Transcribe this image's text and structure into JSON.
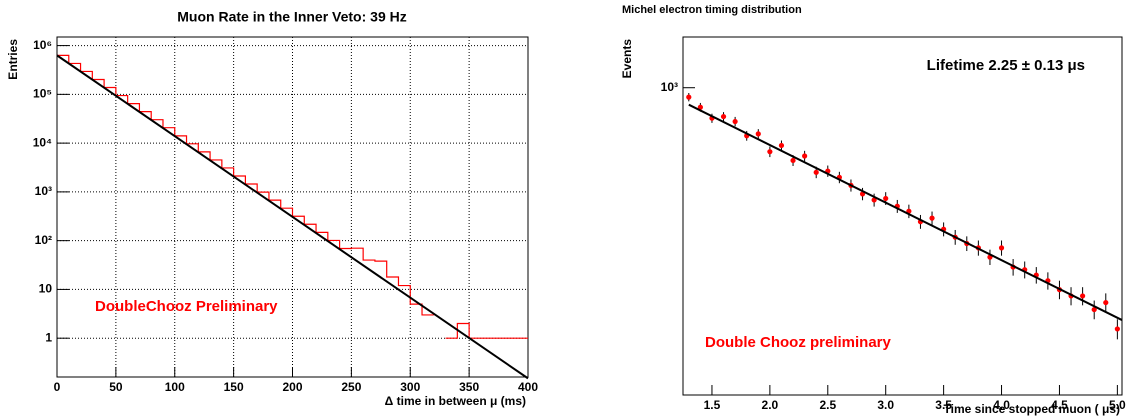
{
  "chart_data": [
    {
      "type": "line",
      "title": "Muon Rate in the Inner Veto: 39 Hz",
      "x_label": "Δ time in between μ (ms)",
      "y_label": "Entries",
      "annotation": "DoubleChooz Preliminary",
      "log_y": true,
      "grid": true,
      "xlim": [
        0,
        400
      ],
      "ylim": [
        0.16,
        1500000
      ],
      "xticks": [
        0,
        50,
        100,
        150,
        200,
        250,
        300,
        350,
        400
      ],
      "yticks": [
        1,
        10,
        {
          "value": 100,
          "label": "10²"
        },
        {
          "value": 1000,
          "label": "10³"
        },
        {
          "value": 10000,
          "label": "10⁴"
        },
        {
          "value": 100000,
          "label": "10⁵"
        },
        {
          "value": 1000000,
          "label": "10⁶"
        }
      ],
      "x": [
        0,
        10,
        20,
        30,
        40,
        50,
        60,
        70,
        80,
        90,
        100,
        110,
        120,
        130,
        140,
        150,
        160,
        170,
        180,
        190,
        200,
        210,
        220,
        230,
        240,
        250,
        260,
        270,
        280,
        290,
        300,
        310,
        320,
        330,
        340,
        350,
        360,
        370,
        380,
        390,
        400
      ],
      "series": [
        {
          "color": "#ff0000",
          "values": [
            630000,
            431000,
            295000,
            202000,
            138000,
            94400,
            64600,
            44200,
            30200,
            20700,
            14100,
            9670,
            6610,
            4520,
            3100,
            2120,
            1450,
            990,
            677,
            463,
            317,
            217,
            148,
            101,
            69,
            70,
            40,
            38,
            18,
            12,
            5,
            3,
            null,
            1,
            2,
            1,
            1,
            1,
            1,
            1,
            1
          ]
        }
      ],
      "fit": {
        "x": [
          0,
          400
        ],
        "values": [
          630000,
          0.15
        ],
        "color": "#000000"
      }
    },
    {
      "type": "scatter",
      "title": "Michel electron timing distribution",
      "x_label": "Time since stopped muon ( μs)",
      "y_label": "Events",
      "annotation": "Double Chooz preliminary",
      "note": "Lifetime 2.25 ± 0.13 μs",
      "log_y": true,
      "grid": false,
      "xlim": [
        1.25,
        5.04
      ],
      "ylim": [
        93,
        1480
      ],
      "xticks": [
        1.5,
        {
          "value": 2,
          "label": "2.0"
        },
        2.5,
        {
          "value": 3,
          "label": "3.0"
        },
        3.5,
        {
          "value": 4,
          "label": "4.0"
        },
        4.5,
        {
          "value": 5,
          "label": "5.0"
        }
      ],
      "yticks": [
        {
          "value": 1000,
          "label": "10³"
        }
      ],
      "x": [
        1.3,
        1.4,
        1.5,
        1.6,
        1.7,
        1.8,
        1.9,
        2.0,
        2.1,
        2.2,
        2.3,
        2.4,
        2.5,
        2.6,
        2.7,
        2.8,
        2.9,
        3.0,
        3.1,
        3.2,
        3.3,
        3.4,
        3.5,
        3.6,
        3.7,
        3.8,
        3.9,
        4.0,
        4.1,
        4.2,
        4.3,
        4.4,
        4.5,
        4.6,
        4.7,
        4.8,
        4.9,
        5.0
      ],
      "series": [
        {
          "color": "#ff0000",
          "values": [
            930,
            860,
            790,
            800,
            770,
            690,
            700,
            610,
            640,
            570,
            590,
            520,
            525,
            500,
            470,
            440,
            420,
            425,
            400,
            385,
            355,
            365,
            335,
            315,
            300,
            290,
            270,
            290,
            250,
            245,
            235,
            225,
            210,
            200,
            200,
            180,
            190,
            155
          ],
          "errors": [
            30,
            29,
            28,
            28,
            28,
            26,
            26,
            25,
            25,
            24,
            24,
            23,
            23,
            22,
            22,
            21,
            21,
            21,
            20,
            20,
            19,
            19,
            18,
            18,
            17,
            17,
            16,
            17,
            16,
            16,
            15,
            15,
            15,
            14,
            14,
            13,
            14,
            12
          ]
        }
      ],
      "fit": {
        "x": [
          1.3,
          5.04
        ],
        "values": [
          877,
          166
        ],
        "color": "#000000"
      }
    }
  ]
}
